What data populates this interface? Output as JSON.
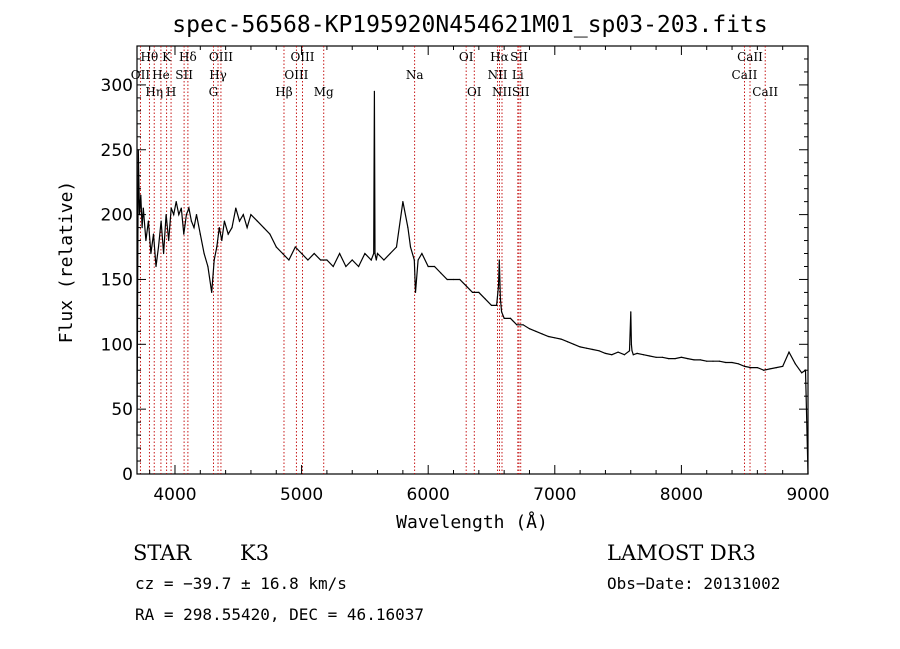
{
  "chart_data": {
    "type": "line",
    "title": "spec-56568-KP195920N454621M01_sp03-203.fits",
    "xlabel": "Wavelength (Å)",
    "ylabel": "Flux (relative)",
    "xlim": [
      3700,
      9000
    ],
    "ylim": [
      0,
      330
    ],
    "xticks": [
      "4000",
      "5000",
      "6000",
      "7000",
      "8000",
      "9000"
    ],
    "yticks": [
      "0",
      "50",
      "100",
      "150",
      "200",
      "250",
      "300"
    ],
    "series": [
      {
        "x": [
          3700,
          3710,
          3720,
          3730,
          3740,
          3750,
          3770,
          3790,
          3810,
          3830,
          3850,
          3870,
          3890,
          3910,
          3930,
          3950,
          3970,
          3990,
          4010,
          4030,
          4050,
          4070,
          4090,
          4110,
          4130,
          4150,
          4170,
          4200,
          4230,
          4260,
          4290,
          4310,
          4330,
          4350,
          4370,
          4390,
          4420,
          4450,
          4480,
          4510,
          4540,
          4570,
          4600,
          4650,
          4700,
          4750,
          4800,
          4850,
          4900,
          4950,
          5000,
          5050,
          5100,
          5150,
          5200,
          5250,
          5300,
          5350,
          5400,
          5450,
          5500,
          5550,
          5570,
          5575,
          5580,
          5590,
          5600,
          5650,
          5700,
          5750,
          5800,
          5840,
          5860,
          5890,
          5900,
          5920,
          5950,
          6000,
          6050,
          6100,
          6150,
          6200,
          6250,
          6300,
          6350,
          6400,
          6450,
          6500,
          6540,
          6555,
          6562,
          6570,
          6580,
          6600,
          6650,
          6700,
          6750,
          6800,
          6850,
          6900,
          6950,
          7000,
          7050,
          7100,
          7150,
          7200,
          7250,
          7300,
          7350,
          7400,
          7450,
          7500,
          7550,
          7590,
          7600,
          7605,
          7610,
          7620,
          7650,
          7700,
          7750,
          7800,
          7850,
          7900,
          7950,
          8000,
          8050,
          8100,
          8150,
          8200,
          8250,
          8300,
          8350,
          8400,
          8450,
          8500,
          8550,
          8600,
          8650,
          8700,
          8750,
          8800,
          8850,
          8900,
          8950,
          8980,
          9000
        ],
        "values": [
          30,
          250,
          200,
          215,
          190,
          205,
          180,
          195,
          170,
          185,
          160,
          175,
          195,
          170,
          200,
          180,
          205,
          200,
          210,
          200,
          205,
          185,
          200,
          205,
          195,
          190,
          200,
          185,
          170,
          160,
          140,
          165,
          175,
          190,
          180,
          195,
          185,
          190,
          205,
          195,
          200,
          190,
          200,
          195,
          190,
          185,
          175,
          170,
          165,
          175,
          170,
          165,
          170,
          165,
          165,
          160,
          170,
          160,
          165,
          160,
          170,
          165,
          170,
          295,
          170,
          165,
          170,
          165,
          170,
          175,
          210,
          190,
          175,
          165,
          140,
          165,
          170,
          160,
          160,
          155,
          150,
          150,
          150,
          145,
          140,
          140,
          135,
          130,
          130,
          145,
          165,
          135,
          125,
          120,
          120,
          115,
          115,
          112,
          110,
          108,
          106,
          105,
          104,
          102,
          100,
          98,
          97,
          96,
          95,
          93,
          92,
          94,
          92,
          95,
          125,
          100,
          95,
          92,
          93,
          92,
          91,
          90,
          90,
          89,
          89,
          90,
          89,
          88,
          88,
          87,
          87,
          87,
          86,
          86,
          85,
          83,
          82,
          82,
          80,
          81,
          82,
          83,
          94,
          85,
          78,
          80,
          0
        ]
      }
    ],
    "spectral_lines": {
      "red": [
        {
          "name": "Hθ",
          "x": 3798,
          "row": 0
        },
        {
          "name": "OII",
          "x": 3727,
          "row": 1
        },
        {
          "name": "Hη",
          "x": 3836,
          "row": 2
        },
        {
          "name": "K",
          "x": 3934,
          "row": 0
        },
        {
          "name": "He",
          "x": 3889,
          "row": 1
        },
        {
          "name": "H",
          "x": 3969,
          "row": 2
        },
        {
          "name": "Hδ",
          "x": 4102,
          "row": 0
        },
        {
          "name": "SII",
          "x": 4072,
          "row": 1
        },
        {
          "name": "OIII",
          "x": 4363,
          "row": 0
        },
        {
          "name": "Hγ",
          "x": 4340,
          "row": 1
        },
        {
          "name": "G",
          "x": 4304,
          "row": 2
        },
        {
          "name": "OIII",
          "x": 5007,
          "row": 0
        },
        {
          "name": "OIII",
          "x": 4959,
          "row": 1
        },
        {
          "name": "Hβ",
          "x": 4861,
          "row": 2
        },
        {
          "name": "Mg",
          "x": 5175,
          "row": 2
        },
        {
          "name": "Na",
          "x": 5893,
          "row": 1
        },
        {
          "name": "OI",
          "x": 6300,
          "row": 0
        },
        {
          "name": "OI",
          "x": 6364,
          "row": 2
        },
        {
          "name": "Hα",
          "x": 6563,
          "row": 0
        },
        {
          "name": "NII",
          "x": 6548,
          "row": 1
        },
        {
          "name": "NII",
          "x": 6583,
          "row": 2
        },
        {
          "name": "SII",
          "x": 6717,
          "row": 0
        },
        {
          "name": "Li",
          "x": 6708,
          "row": 1
        },
        {
          "name": "SII",
          "x": 6731,
          "row": 2
        },
        {
          "name": "CaII",
          "x": 8542,
          "row": 0
        },
        {
          "name": "CaII",
          "x": 8498,
          "row": 1
        },
        {
          "name": "CaII",
          "x": 8662,
          "row": 2
        }
      ],
      "label_color": "#000000",
      "line_color": "#c00000"
    },
    "info": {
      "class": "STAR",
      "subclass": "K3",
      "survey": "LAMOST DR3",
      "cz": "cz = −39.7 ± 16.8 km/s",
      "obsdate": "Obs−Date: 20131002",
      "radec": "RA = 298.55420, DEC =  46.16037"
    }
  }
}
